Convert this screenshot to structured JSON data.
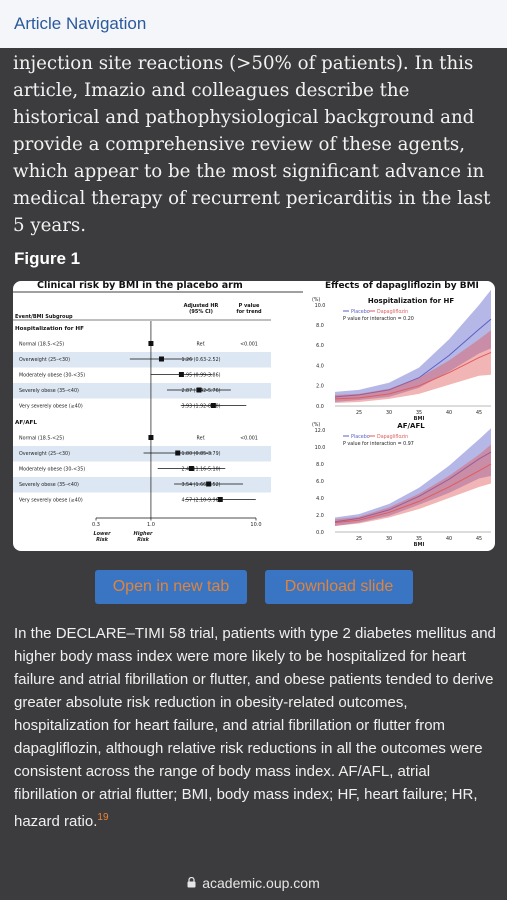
{
  "header": {
    "nav_label": "Article Navigation"
  },
  "article": {
    "paragraph": "injection site reactions (>50% of patients). In this article, Imazio and colleagues describe the historical and pathophysiological background and provide a comprehensive review of these agents, which appear to be the most significant advance in medical therapy of recurrent pericarditis in the last 5 years."
  },
  "figure": {
    "label": "Figure 1",
    "left_panel": {
      "title": "Clinical risk by BMI in the placebo arm",
      "col_subgroup": "Event/BMI Subgroup",
      "col_hr": [
        "Adjusted HR",
        "(95% CI)"
      ],
      "col_p": [
        "P value",
        "for trend"
      ],
      "groups": [
        {
          "name": "Hospitalization for HF",
          "rows": [
            {
              "label": "Normal (18.5-<25)",
              "hr": "Ref.",
              "p": "<0.001"
            },
            {
              "label": "Overweight (25-<30)",
              "hr": "1.26 (0.63-2.52)",
              "p": ""
            },
            {
              "label": "Moderately obese (30-<35)",
              "hr": "1.95 (0.99-3.86)",
              "p": ""
            },
            {
              "label": "Severely obese (35-<40)",
              "hr": "2.87 (1.42-5.76)",
              "p": ""
            },
            {
              "label": "Very severely obese (≥40)",
              "hr": "3.93 (1.92-8.08)",
              "p": ""
            }
          ]
        },
        {
          "name": "AF/AFL",
          "rows": [
            {
              "label": "Normal (18.5-<25)",
              "hr": "Ref.",
              "p": "<0.001"
            },
            {
              "label": "Overweight (25-<30)",
              "hr": "1.80 (0.85-3.79)",
              "p": ""
            },
            {
              "label": "Moderately obese (30-<35)",
              "hr": "2.43 (1.16-5.10)",
              "p": ""
            },
            {
              "label": "Severely obese (35-<40)",
              "hr": "3.54 (1.66-7.52)",
              "p": ""
            },
            {
              "label": "Very severely obese (≥40)",
              "hr": "4.57 (2.10-9.96)",
              "p": ""
            }
          ]
        }
      ],
      "axis_ticks": [
        "0.3",
        "1.0",
        "10.0"
      ],
      "axis_left": [
        "Lower",
        "Risk"
      ],
      "axis_right": [
        "Higher",
        "Risk"
      ]
    },
    "right_panel": {
      "title": "Effects of dapagliflozin by BMI",
      "ylabel": "(%)",
      "xlabel": "BMI",
      "legend": [
        "Placebo",
        "Dapagliflozin"
      ],
      "x_ticks": [
        "25",
        "30",
        "35",
        "40",
        "45"
      ],
      "charts": [
        {
          "title": "Hospitalization for HF",
          "p_text": "P value for interaction = 0.20",
          "y_ticks": [
            "0.0",
            "2.0",
            "4.0",
            "6.0",
            "8.0",
            "10.0"
          ]
        },
        {
          "title": "AF/AFL",
          "p_text": "P value for interaction = 0.97",
          "y_ticks": [
            "0.0",
            "2.0",
            "4.0",
            "6.0",
            "8.0",
            "10.0",
            "12.0"
          ]
        }
      ]
    },
    "colors": {
      "placebo": "#5b5fc7",
      "dapagliflozin": "#e25b5b"
    }
  },
  "buttons": {
    "open": "Open in new tab",
    "download": "Download slide"
  },
  "caption": {
    "text": "In the DECLARE–TIMI 58 trial, patients with type 2 diabetes mellitus and higher body mass index were more likely to be hospitalized for heart failure and atrial fibrillation or flutter, and obese patients tended to derive greater absolute risk reduction in obesity-related outcomes, hospitalization for heart failure, and atrial fibrillation or flutter from dapagliflozin, although relative risk reductions in all the outcomes were consistent across the range of body mass index. AF/AFL, atrial fibrillation or atrial flutter; BMI, body mass index; HF, heart failure; HR, hazard ratio.",
    "ref": "19"
  },
  "browser": {
    "url": "academic.oup.com"
  }
}
